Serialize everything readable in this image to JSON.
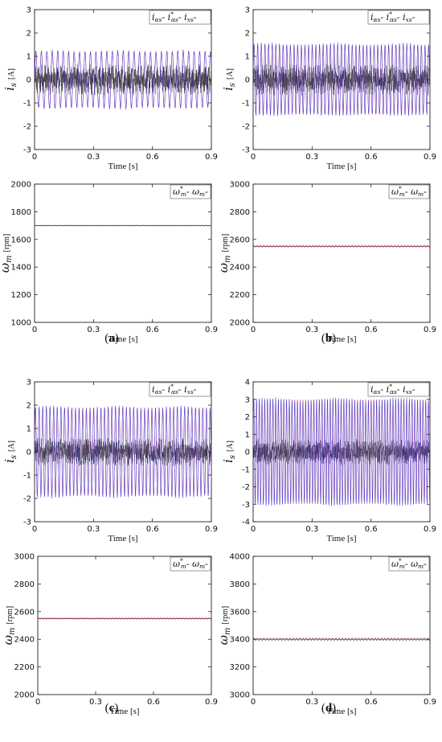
{
  "colors": {
    "ias": "#3b3bd6",
    "ref": "#e0407a",
    "ixs": "#2a2a2a",
    "speed": "#3a3a3a",
    "speed_ref": "#e0407a"
  },
  "chart_data": [
    {
      "id": "a-current",
      "type": "line",
      "panel": "a",
      "kind": "current",
      "xlabel": "Time [s]",
      "xlim": [
        0,
        0.9
      ],
      "xticks": [
        0,
        0.3,
        0.6,
        0.9
      ],
      "ylabel": "i",
      "ylabel_sub": "s",
      "ylabel_unit": "[A]",
      "ylim": [
        -3,
        3
      ],
      "yticks": [
        -3,
        -2,
        -1,
        0,
        1,
        2,
        3
      ],
      "legend": "ias-ias*-ixs",
      "series": [
        {
          "name": "i_as",
          "amplitude": 1.2,
          "cycles": 36
        },
        {
          "name": "i*_as",
          "amplitude": 1.2,
          "cycles": 36
        },
        {
          "name": "i_xs",
          "amplitude": 0.55
        }
      ]
    },
    {
      "id": "b-current",
      "type": "line",
      "panel": "b",
      "kind": "current",
      "xlabel": "Time [s]",
      "xlim": [
        0,
        0.9
      ],
      "xticks": [
        0,
        0.3,
        0.6,
        0.9
      ],
      "ylabel": "i",
      "ylabel_sub": "s",
      "ylabel_unit": "[A]",
      "ylim": [
        -3,
        3
      ],
      "yticks": [
        -3,
        -2,
        -1,
        0,
        1,
        2,
        3
      ],
      "legend": "ias-ias*-ixs",
      "series": [
        {
          "name": "i_as",
          "amplitude": 1.5,
          "cycles": 54
        },
        {
          "name": "i*_as",
          "amplitude": 1.5,
          "cycles": 54
        },
        {
          "name": "i_xs",
          "amplitude": 0.55
        }
      ]
    },
    {
      "id": "a-speed",
      "type": "line",
      "panel": "a",
      "kind": "speed",
      "xlabel": "Time [s]",
      "xlim": [
        0,
        0.9
      ],
      "xticks": [
        0,
        0.3,
        0.6,
        0.9
      ],
      "ylabel": "ω",
      "ylabel_sub": "m",
      "ylabel_unit": "[rpm]",
      "ylim": [
        1000,
        2000
      ],
      "yticks": [
        1000,
        1200,
        1400,
        1600,
        1800,
        2000
      ],
      "legend": "wm*-wm",
      "series": [
        {
          "name": "ω*_m",
          "value": 1700
        },
        {
          "name": "ω_m",
          "value": 1700,
          "ripple": 3
        }
      ]
    },
    {
      "id": "b-speed",
      "type": "line",
      "panel": "b",
      "kind": "speed",
      "xlabel": "Time [s]",
      "xlim": [
        0,
        0.9
      ],
      "xticks": [
        0,
        0.3,
        0.6,
        0.9
      ],
      "ylabel": "ω",
      "ylabel_sub": "m",
      "ylabel_unit": "[rpm]",
      "ylim": [
        2000,
        3000
      ],
      "yticks": [
        2000,
        2200,
        2400,
        2600,
        2800,
        3000
      ],
      "legend": "wm*-wm",
      "series": [
        {
          "name": "ω*_m",
          "value": 2550
        },
        {
          "name": "ω_m",
          "value": 2550,
          "ripple": 5
        }
      ]
    },
    {
      "id": "c-current",
      "type": "line",
      "panel": "c",
      "kind": "current",
      "xlabel": "Time [s]",
      "xlim": [
        0,
        0.9
      ],
      "xticks": [
        0,
        0.3,
        0.6,
        0.9
      ],
      "ylabel": "i",
      "ylabel_sub": "s",
      "ylabel_unit": "[A]",
      "ylim": [
        -3,
        3
      ],
      "yticks": [
        -3,
        -2,
        -1,
        0,
        1,
        2,
        3
      ],
      "legend": "ias-ias*-ixs",
      "series": [
        {
          "name": "i_as",
          "amplitude": 1.9,
          "cycles": 54
        },
        {
          "name": "i*_as",
          "amplitude": 1.9,
          "cycles": 54
        },
        {
          "name": "i_xs",
          "amplitude": 0.5
        }
      ]
    },
    {
      "id": "d-current",
      "type": "line",
      "panel": "d",
      "kind": "current",
      "xlabel": "Time [s]",
      "xlim": [
        0,
        0.9
      ],
      "xticks": [
        0,
        0.3,
        0.6,
        0.9
      ],
      "ylabel": "i",
      "ylabel_sub": "s",
      "ylabel_unit": "[A]",
      "ylim": [
        -4,
        4
      ],
      "yticks": [
        -4,
        -3,
        -2,
        -1,
        0,
        1,
        2,
        3,
        4
      ],
      "legend": "ias-ias*-ixs",
      "series": [
        {
          "name": "i_as",
          "amplitude": 3.0,
          "cycles": 72
        },
        {
          "name": "i*_as",
          "amplitude": 3.0,
          "cycles": 72
        },
        {
          "name": "i_xs",
          "amplitude": 0.6
        }
      ]
    },
    {
      "id": "c-speed",
      "type": "line",
      "panel": "c",
      "kind": "speed",
      "xlabel": "Time [s]",
      "xlim": [
        0,
        0.9
      ],
      "xticks": [
        0,
        0.3,
        0.6,
        0.9
      ],
      "ylabel": "ω",
      "ylabel_sub": "m",
      "ylabel_unit": "[rpm]",
      "ylim": [
        2000,
        3000
      ],
      "yticks": [
        2000,
        2200,
        2400,
        2600,
        2800,
        3000
      ],
      "legend": "wm*-wm",
      "series": [
        {
          "name": "ω*_m",
          "value": 2550
        },
        {
          "name": "ω_m",
          "value": 2550,
          "ripple": 4
        }
      ]
    },
    {
      "id": "d-speed",
      "type": "line",
      "panel": "d",
      "kind": "speed",
      "xlabel": "Time [s]",
      "xlim": [
        0,
        0.9
      ],
      "xticks": [
        0,
        0.3,
        0.6,
        0.9
      ],
      "ylabel": "ω",
      "ylabel_sub": "m",
      "ylabel_unit": "[rpm]",
      "ylim": [
        3000,
        4000
      ],
      "yticks": [
        3000,
        3200,
        3400,
        3600,
        3800,
        4000
      ],
      "legend": "wm*-wm",
      "series": [
        {
          "name": "ω*_m",
          "value": 3400
        },
        {
          "name": "ω_m",
          "value": 3400,
          "ripple": 8
        }
      ]
    }
  ],
  "panel_labels": [
    "(a)",
    "(b)",
    "(c)",
    "(d)"
  ]
}
